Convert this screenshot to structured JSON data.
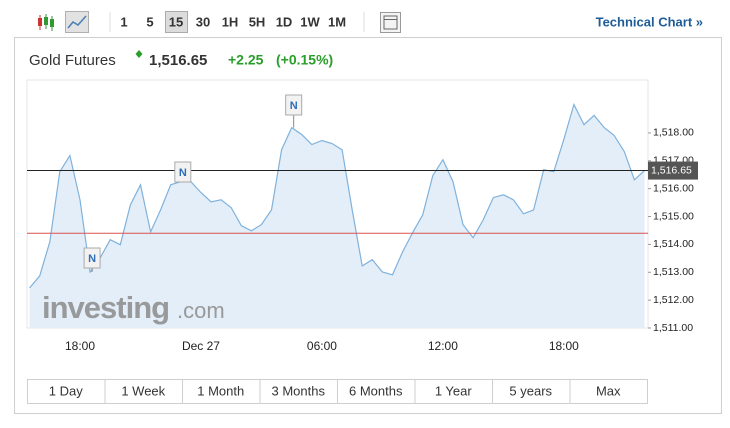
{
  "toolbar": {
    "intervals": [
      "1",
      "5",
      "15",
      "30",
      "1H",
      "5H",
      "1D",
      "1W",
      "1M"
    ],
    "technical_chart": "Technical Chart »"
  },
  "header": {
    "name": "Gold Futures",
    "price": "1,516.65",
    "change": "+2.25",
    "change_pct": "(+0.15%)"
  },
  "chart_data": {
    "type": "area",
    "categories": [
      null,
      null,
      null,
      null,
      null,
      "18:00",
      null,
      null,
      null,
      null,
      null,
      null,
      null,
      null,
      null,
      null,
      null,
      "Dec 27",
      null,
      null,
      null,
      null,
      null,
      null,
      null,
      null,
      null,
      null,
      null,
      "06:00",
      null,
      null,
      null,
      null,
      null,
      null,
      null,
      null,
      null,
      null,
      null,
      "12:00",
      null,
      null,
      null,
      null,
      null,
      null,
      null,
      null,
      null,
      null,
      null,
      "18:00",
      null,
      null,
      null,
      null,
      null,
      null,
      null,
      null
    ],
    "values": [
      1512.44,
      1512.87,
      1514.09,
      1516.61,
      1517.19,
      1515.6,
      1513.01,
      1513.52,
      1514.17,
      1513.99,
      1515.42,
      1516.14,
      1514.45,
      1515.24,
      1516.14,
      1516.25,
      1516.25,
      1515.86,
      1515.53,
      1515.6,
      1515.32,
      1514.67,
      1514.49,
      1514.71,
      1515.24,
      1517.4,
      1518.19,
      1517.94,
      1517.58,
      1517.73,
      1517.62,
      1517.4,
      1515.24,
      1513.23,
      1513.45,
      1513.01,
      1512.91,
      1513.73,
      1514.42,
      1515.06,
      1516.47,
      1517.04,
      1516.25,
      1514.71,
      1514.24,
      1514.88,
      1515.68,
      1515.78,
      1515.6,
      1515.1,
      1515.24,
      1516.68,
      1516.61,
      1517.76,
      1519.02,
      1518.3,
      1518.63,
      1518.19,
      1517.91,
      1517.33,
      1516.32,
      1516.65
    ],
    "color": "#7fb2dc",
    "fill": "#e4eef8",
    "ylim": [
      1511,
      1519.9
    ],
    "yticks": [
      {
        "value": 1511,
        "label": "1,511.00"
      },
      {
        "value": 1512,
        "label": "1,512.00"
      },
      {
        "value": 1513,
        "label": "1,513.00"
      },
      {
        "value": 1514,
        "label": "1,514.00"
      },
      {
        "value": 1515,
        "label": "1,515.00"
      },
      {
        "value": 1516,
        "label": "1,516.00"
      },
      {
        "value": 1517,
        "label": "1,517.00"
      },
      {
        "value": 1518,
        "label": "1,518.00"
      }
    ],
    "grid": false,
    "price_line": {
      "value": 1516.65,
      "label": "1,516.65"
    },
    "prev_close": 1514.4,
    "news_markers": [
      "N",
      "N",
      "N"
    ]
  },
  "watermark": {
    "brand": "investing",
    "suffix": ".com"
  },
  "ranges": [
    "1 Day",
    "1 Week",
    "1 Month",
    "3 Months",
    "6 Months",
    "1 Year",
    "5 years",
    "Max"
  ]
}
